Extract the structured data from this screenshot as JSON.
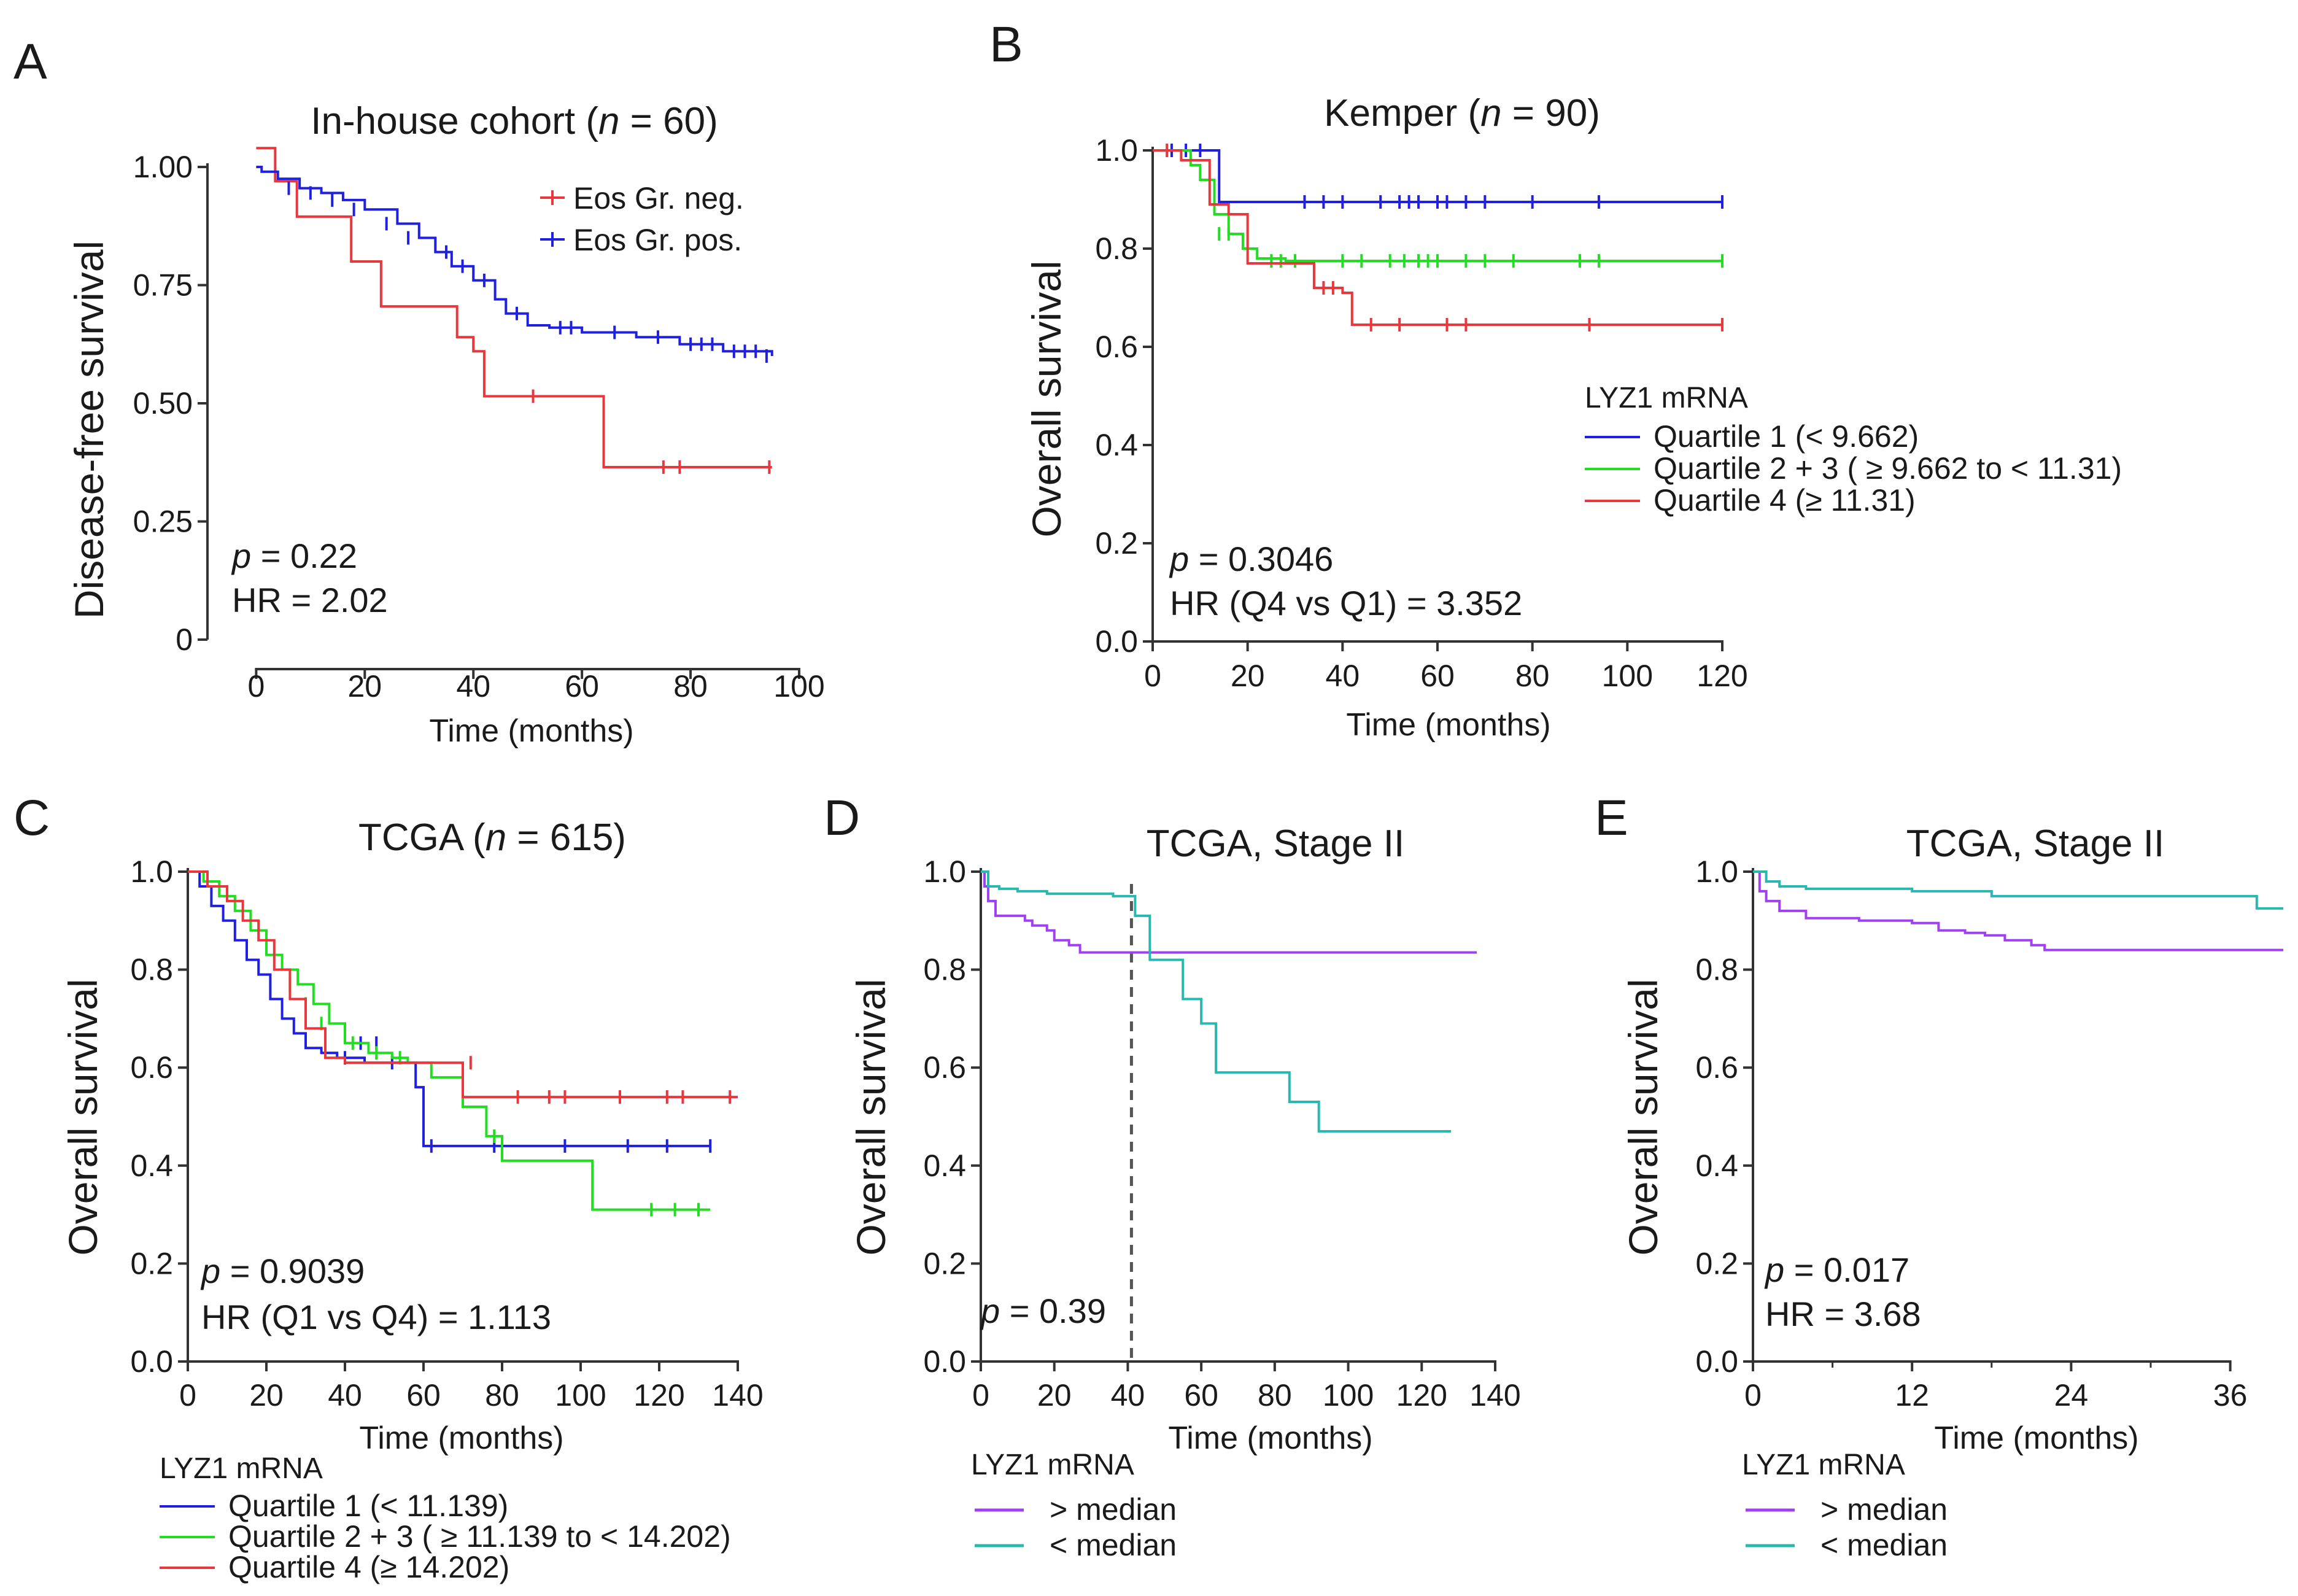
{
  "chart_data": [
    {
      "id": "A",
      "type": "line",
      "subtype": "kaplan-meier",
      "panel_label": "A",
      "title_pre": "In-house cohort (",
      "title_ital": "n",
      "title_post": " = 60)",
      "xlabel": "Time (months)",
      "ylabel": "Disease-free survival",
      "xlim": [
        -4,
        100
      ],
      "ylim": [
        0,
        1.0
      ],
      "xticks": [
        0,
        20,
        40,
        60,
        80,
        100
      ],
      "xtick_labels": [
        "0",
        "20",
        "40",
        "60",
        "80",
        "100"
      ],
      "yticks": [
        0,
        0.25,
        0.5,
        0.75,
        1.0
      ],
      "ytick_labels": [
        "0",
        "0.25",
        "0.50",
        "0.75",
        "1.00"
      ],
      "legend_title": "",
      "legend_position": "top-right",
      "legend_style": "tick",
      "stats": [
        {
          "ital": "p",
          "rest": " = 0.22"
        },
        {
          "ital": "",
          "rest": "HR = 2.02"
        }
      ],
      "series": [
        {
          "name": "Eos Gr. neg.",
          "color": "#e8383d",
          "times": [
            0,
            2.5,
            3.5,
            7.5,
            17.5,
            23,
            37,
            40,
            42,
            64,
            95
          ],
          "surv": [
            1.04,
            1.04,
            0.97,
            0.895,
            0.8,
            0.705,
            0.64,
            0.61,
            0.515,
            0.365,
            0.365
          ],
          "censor": [
            [
              51,
              0.515
            ],
            [
              75,
              0.365
            ],
            [
              78,
              0.365
            ],
            [
              94.5,
              0.365
            ]
          ]
        },
        {
          "name": "Eos Gr. pos.",
          "color": "#2020e0",
          "times": [
            0,
            1,
            4,
            8,
            12,
            16,
            20,
            26,
            30,
            33,
            36,
            40,
            44,
            46,
            50,
            54,
            60,
            70,
            78,
            86,
            95
          ],
          "surv": [
            1.0,
            0.99,
            0.975,
            0.955,
            0.945,
            0.93,
            0.91,
            0.88,
            0.85,
            0.82,
            0.79,
            0.76,
            0.72,
            0.69,
            0.665,
            0.66,
            0.65,
            0.64,
            0.625,
            0.61,
            0.6
          ],
          "censor": [
            [
              6,
              0.955
            ],
            [
              10,
              0.945
            ],
            [
              14,
              0.93
            ],
            [
              18,
              0.91
            ],
            [
              24,
              0.88
            ],
            [
              28,
              0.85
            ],
            [
              35,
              0.82
            ],
            [
              38,
              0.79
            ],
            [
              42,
              0.76
            ],
            [
              48,
              0.69
            ],
            [
              56,
              0.66
            ],
            [
              58,
              0.66
            ],
            [
              66,
              0.65
            ],
            [
              74,
              0.64
            ],
            [
              80,
              0.625
            ],
            [
              82,
              0.625
            ],
            [
              84,
              0.625
            ],
            [
              88,
              0.61
            ],
            [
              90,
              0.61
            ],
            [
              92,
              0.61
            ],
            [
              94,
              0.6
            ]
          ]
        }
      ]
    },
    {
      "id": "B",
      "type": "line",
      "subtype": "kaplan-meier",
      "panel_label": "B",
      "title_pre": "Kemper (",
      "title_ital": "n",
      "title_post": " = 90)",
      "xlabel": "Time (months)",
      "ylabel": "Overall survival",
      "xlim": [
        0,
        120
      ],
      "ylim": [
        0,
        1.0
      ],
      "xticks": [
        0,
        20,
        40,
        60,
        80,
        100,
        120
      ],
      "xtick_labels": [
        "0",
        "20",
        "40",
        "60",
        "80",
        "100",
        "120"
      ],
      "yticks": [
        0,
        0.2,
        0.4,
        0.6,
        0.8,
        1.0
      ],
      "ytick_labels": [
        "0.0",
        "0.2",
        "0.4",
        "0.6",
        "0.8",
        "1.0"
      ],
      "legend_title": "LYZ1 mRNA",
      "legend_position": "center-right",
      "legend_style": "line",
      "stats": [
        {
          "ital": "p",
          "rest": " = 0.3046"
        },
        {
          "ital": "",
          "rest": "HR (Q4 vs Q1) = 3.352"
        }
      ],
      "series": [
        {
          "name": "Quartile 1 (< 9.662)",
          "color": "#2020e0",
          "times": [
            0,
            14,
            120
          ],
          "surv": [
            1.0,
            0.895,
            0.895
          ],
          "censor": [
            [
              4,
              1.0
            ],
            [
              7,
              1.0
            ],
            [
              10,
              1.0
            ],
            [
              32,
              0.895
            ],
            [
              36,
              0.895
            ],
            [
              40,
              0.895
            ],
            [
              48,
              0.895
            ],
            [
              52,
              0.895
            ],
            [
              54,
              0.895
            ],
            [
              56,
              0.895
            ],
            [
              60,
              0.895
            ],
            [
              62,
              0.895
            ],
            [
              66,
              0.895
            ],
            [
              70,
              0.895
            ],
            [
              80,
              0.895
            ],
            [
              94,
              0.895
            ],
            [
              120,
              0.895
            ]
          ]
        },
        {
          "name": "Quartile 2 + 3 ( ≥ 9.662 to < 11.31)",
          "color": "#22dd22",
          "times": [
            0,
            8,
            10,
            13,
            16,
            19,
            22,
            28,
            32,
            120
          ],
          "surv": [
            1.0,
            0.97,
            0.94,
            0.87,
            0.83,
            0.8,
            0.78,
            0.775,
            0.775,
            0.775
          ],
          "censor": [
            [
              14,
              0.83
            ],
            [
              16,
              0.83
            ],
            [
              25,
              0.775
            ],
            [
              27,
              0.775
            ],
            [
              30,
              0.775
            ],
            [
              40,
              0.775
            ],
            [
              44,
              0.775
            ],
            [
              50,
              0.775
            ],
            [
              53,
              0.775
            ],
            [
              56,
              0.775
            ],
            [
              58,
              0.775
            ],
            [
              60,
              0.775
            ],
            [
              66,
              0.775
            ],
            [
              70,
              0.775
            ],
            [
              76,
              0.775
            ],
            [
              90,
              0.775
            ],
            [
              94,
              0.775
            ],
            [
              120,
              0.775
            ]
          ]
        },
        {
          "name": "Quartile 4 (≥ 11.31)",
          "color": "#e8383d",
          "times": [
            0,
            6,
            12,
            16,
            20,
            34,
            40,
            42,
            120
          ],
          "surv": [
            1.0,
            0.98,
            0.89,
            0.87,
            0.77,
            0.72,
            0.71,
            0.645,
            0.645
          ],
          "censor": [
            [
              3,
              1.0
            ],
            [
              36,
              0.72
            ],
            [
              38,
              0.72
            ],
            [
              46,
              0.645
            ],
            [
              52,
              0.645
            ],
            [
              62,
              0.645
            ],
            [
              66,
              0.645
            ],
            [
              92,
              0.645
            ],
            [
              120,
              0.645
            ]
          ]
        }
      ]
    },
    {
      "id": "C",
      "type": "line",
      "subtype": "kaplan-meier",
      "panel_label": "C",
      "title_pre": "TCGA (",
      "title_ital": "n",
      "title_post": " = 615)",
      "xlabel": "Time (months)",
      "ylabel": "Overall survival",
      "xlim": [
        0,
        140
      ],
      "ylim": [
        0,
        1.0
      ],
      "xticks": [
        0,
        20,
        40,
        60,
        80,
        100,
        120,
        140
      ],
      "xtick_labels": [
        "0",
        "20",
        "40",
        "60",
        "80",
        "100",
        "120",
        "140"
      ],
      "yticks": [
        0,
        0.2,
        0.4,
        0.6,
        0.8,
        1.0
      ],
      "ytick_labels": [
        "0.0",
        "0.2",
        "0.4",
        "0.6",
        "0.8",
        "1.0"
      ],
      "legend_title": "LYZ1 mRNA",
      "legend_position": "bottom-left",
      "legend_style": "line",
      "stats": [
        {
          "ital": "p",
          "rest": " = 0.9039"
        },
        {
          "ital": "",
          "rest": "HR (Q1 vs Q4) = 1.113"
        }
      ],
      "series": [
        {
          "name": "Quartile 1 (< 11.139)",
          "color": "#2020e0",
          "times": [
            0,
            3,
            6,
            9,
            12,
            15,
            18,
            21,
            24,
            27,
            30,
            34,
            38,
            45,
            58,
            60,
            133
          ],
          "surv": [
            1.0,
            0.97,
            0.93,
            0.9,
            0.86,
            0.82,
            0.79,
            0.74,
            0.7,
            0.67,
            0.64,
            0.63,
            0.62,
            0.61,
            0.56,
            0.44,
            0.44
          ],
          "censor": [
            [
              40,
              0.62
            ],
            [
              44,
              0.65
            ],
            [
              48,
              0.65
            ],
            [
              52,
              0.61
            ],
            [
              62,
              0.44
            ],
            [
              78,
              0.44
            ],
            [
              96,
              0.44
            ],
            [
              112,
              0.44
            ],
            [
              122,
              0.44
            ],
            [
              133,
              0.44
            ]
          ]
        },
        {
          "name": "Quartile 2 + 3 ( ≥ 11.139 to < 14.202)",
          "color": "#22dd22",
          "times": [
            0,
            4,
            8,
            12,
            16,
            20,
            24,
            28,
            32,
            36,
            40,
            46,
            52,
            56,
            62,
            70,
            76,
            80,
            103,
            133
          ],
          "surv": [
            1.0,
            0.98,
            0.95,
            0.92,
            0.88,
            0.83,
            0.8,
            0.77,
            0.73,
            0.69,
            0.65,
            0.63,
            0.62,
            0.61,
            0.58,
            0.52,
            0.46,
            0.41,
            0.31,
            0.31
          ],
          "censor": [
            [
              26,
              0.77
            ],
            [
              30,
              0.73
            ],
            [
              34,
              0.69
            ],
            [
              42,
              0.65
            ],
            [
              48,
              0.63
            ],
            [
              54,
              0.62
            ],
            [
              78,
              0.46
            ],
            [
              118,
              0.31
            ],
            [
              124,
              0.31
            ],
            [
              130,
              0.31
            ]
          ]
        },
        {
          "name": "Quartile 4 (≥ 14.202)",
          "color": "#e8383d",
          "times": [
            0,
            5,
            10,
            14,
            18,
            22,
            26,
            30,
            35,
            40,
            46,
            60,
            70,
            140
          ],
          "surv": [
            1.0,
            0.97,
            0.94,
            0.9,
            0.86,
            0.8,
            0.74,
            0.68,
            0.62,
            0.61,
            0.61,
            0.61,
            0.54,
            0.54
          ],
          "censor": [
            [
              72,
              0.61
            ],
            [
              84,
              0.54
            ],
            [
              92,
              0.54
            ],
            [
              96,
              0.54
            ],
            [
              110,
              0.54
            ],
            [
              122,
              0.54
            ],
            [
              126,
              0.54
            ],
            [
              138,
              0.54
            ]
          ]
        }
      ]
    },
    {
      "id": "D",
      "type": "line",
      "subtype": "kaplan-meier",
      "panel_label": "D",
      "title_pre": "TCGA, Stage II",
      "title_ital": "",
      "title_post": "",
      "xlabel": "Time (months)",
      "ylabel": "Overall survival",
      "xlim": [
        0,
        140
      ],
      "ylim": [
        0,
        1.0
      ],
      "xticks": [
        0,
        20,
        40,
        60,
        80,
        100,
        120,
        140
      ],
      "xtick_labels": [
        "0",
        "20",
        "40",
        "60",
        "80",
        "100",
        "120",
        "140"
      ],
      "yticks": [
        0,
        0.2,
        0.4,
        0.6,
        0.8,
        1.0
      ],
      "ytick_labels": [
        "0.0",
        "0.2",
        "0.4",
        "0.6",
        "0.8",
        "1.0"
      ],
      "legend_title": "LYZ1 mRNA",
      "legend_position": "bottom-left",
      "legend_style": "line",
      "vline_x": 41,
      "stats": [
        {
          "ital": "p",
          "rest": " = 0.39"
        }
      ],
      "series": [
        {
          "name": "> median",
          "color": "#a040f0",
          "times": [
            0,
            1,
            2,
            4,
            12,
            14,
            18,
            20,
            24,
            27,
            135
          ],
          "surv": [
            1.0,
            0.97,
            0.94,
            0.91,
            0.9,
            0.89,
            0.88,
            0.86,
            0.85,
            0.835,
            0.835
          ],
          "censor": []
        },
        {
          "name": "< median",
          "color": "#28b8b0",
          "times": [
            0,
            2,
            5,
            10,
            18,
            36,
            42,
            46,
            55,
            60,
            64,
            84,
            92,
            128
          ],
          "surv": [
            1.0,
            0.97,
            0.965,
            0.96,
            0.955,
            0.95,
            0.91,
            0.82,
            0.74,
            0.69,
            0.59,
            0.53,
            0.47,
            0.47
          ],
          "censor": []
        }
      ]
    },
    {
      "id": "E",
      "type": "line",
      "subtype": "kaplan-meier",
      "panel_label": "E",
      "title_pre": "TCGA, Stage II",
      "title_ital": "",
      "title_post": "",
      "xlabel": "Time (months)",
      "ylabel": "Overall survival",
      "xlim": [
        0,
        40
      ],
      "ylim": [
        0,
        1.0
      ],
      "xticks": [
        0,
        12,
        24,
        36
      ],
      "xtick_labels": [
        "0",
        "12",
        "24",
        "36"
      ],
      "minor_xticks": [
        6,
        18,
        30
      ],
      "yticks": [
        0,
        0.2,
        0.4,
        0.6,
        0.8,
        1.0
      ],
      "ytick_labels": [
        "0.0",
        "0.2",
        "0.4",
        "0.6",
        "0.8",
        "1.0"
      ],
      "legend_title": "LYZ1 mRNA",
      "legend_position": "bottom-left",
      "legend_style": "line",
      "stats": [
        {
          "ital": "p",
          "rest": " = 0.017"
        },
        {
          "ital": "",
          "rest": "HR = 3.68"
        }
      ],
      "series": [
        {
          "name": "> median",
          "color": "#a040f0",
          "times": [
            0,
            0.5,
            1,
            2,
            4,
            8,
            12,
            14,
            16,
            17.5,
            19,
            21,
            22,
            40
          ],
          "surv": [
            1.0,
            0.96,
            0.94,
            0.92,
            0.905,
            0.9,
            0.895,
            0.88,
            0.875,
            0.87,
            0.86,
            0.85,
            0.84,
            0.84
          ],
          "censor": []
        },
        {
          "name": "< median",
          "color": "#28b8b0",
          "times": [
            0,
            1,
            2,
            4,
            12,
            18,
            38,
            40
          ],
          "surv": [
            1.0,
            0.98,
            0.97,
            0.965,
            0.96,
            0.95,
            0.925,
            0.925
          ],
          "censor": []
        }
      ]
    }
  ]
}
